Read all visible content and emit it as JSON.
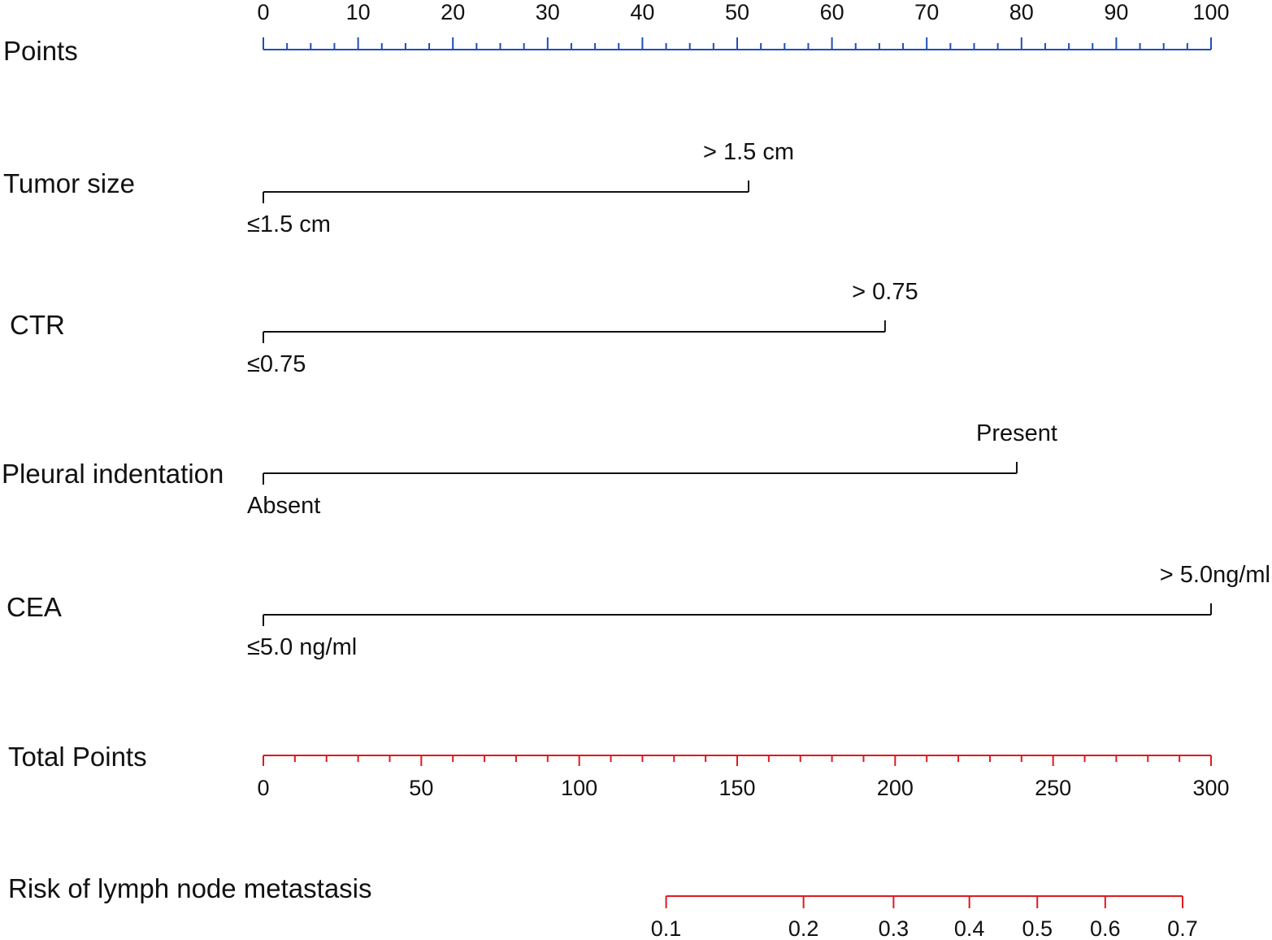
{
  "chart_data": {
    "type": "nomogram",
    "colors": {
      "points_axis": "#1f4fb5",
      "variable_lines": "#111111",
      "total_axis": "#e0191e",
      "risk_axis": "#e0191e"
    },
    "points_axis": {
      "label": "Points",
      "range": [
        0,
        100
      ],
      "major_ticks": [
        0,
        10,
        20,
        30,
        40,
        50,
        60,
        70,
        80,
        90,
        100
      ],
      "minor_step": 2.5
    },
    "variables": [
      {
        "name": "Tumor size",
        "levels": [
          {
            "label": "≤1.5 cm",
            "points": 0
          },
          {
            "label": "> 1.5 cm",
            "points": 51.2
          }
        ]
      },
      {
        "name": "CTR",
        "levels": [
          {
            "label": "≤0.75",
            "points": 0
          },
          {
            "label": "> 0.75",
            "points": 65.6
          }
        ]
      },
      {
        "name": "Pleural indentation",
        "levels": [
          {
            "label": "Absent",
            "points": 0
          },
          {
            "label": "Present",
            "points": 79.5
          }
        ]
      },
      {
        "name": "CEA",
        "levels": [
          {
            "label": "≤5.0 ng/ml",
            "points": 0
          },
          {
            "label": "> 5.0ng/ml",
            "points": 100
          }
        ]
      }
    ],
    "total_points_axis": {
      "label": "Total Points",
      "range": [
        0,
        300
      ],
      "major_ticks": [
        0,
        50,
        100,
        150,
        200,
        250,
        300
      ],
      "minor_step": 10
    },
    "risk_axis": {
      "label": "Risk of lymph node metastasis",
      "ticks": [
        {
          "label": "0.1",
          "total_points": 127.5
        },
        {
          "label": "0.2",
          "total_points": 171
        },
        {
          "label": "0.3",
          "total_points": 199.5
        },
        {
          "label": "0.4",
          "total_points": 223.5
        },
        {
          "label": "0.5",
          "total_points": 245
        },
        {
          "label": "0.6",
          "total_points": 266.5
        },
        {
          "label": "0.7",
          "total_points": 291
        }
      ]
    }
  }
}
